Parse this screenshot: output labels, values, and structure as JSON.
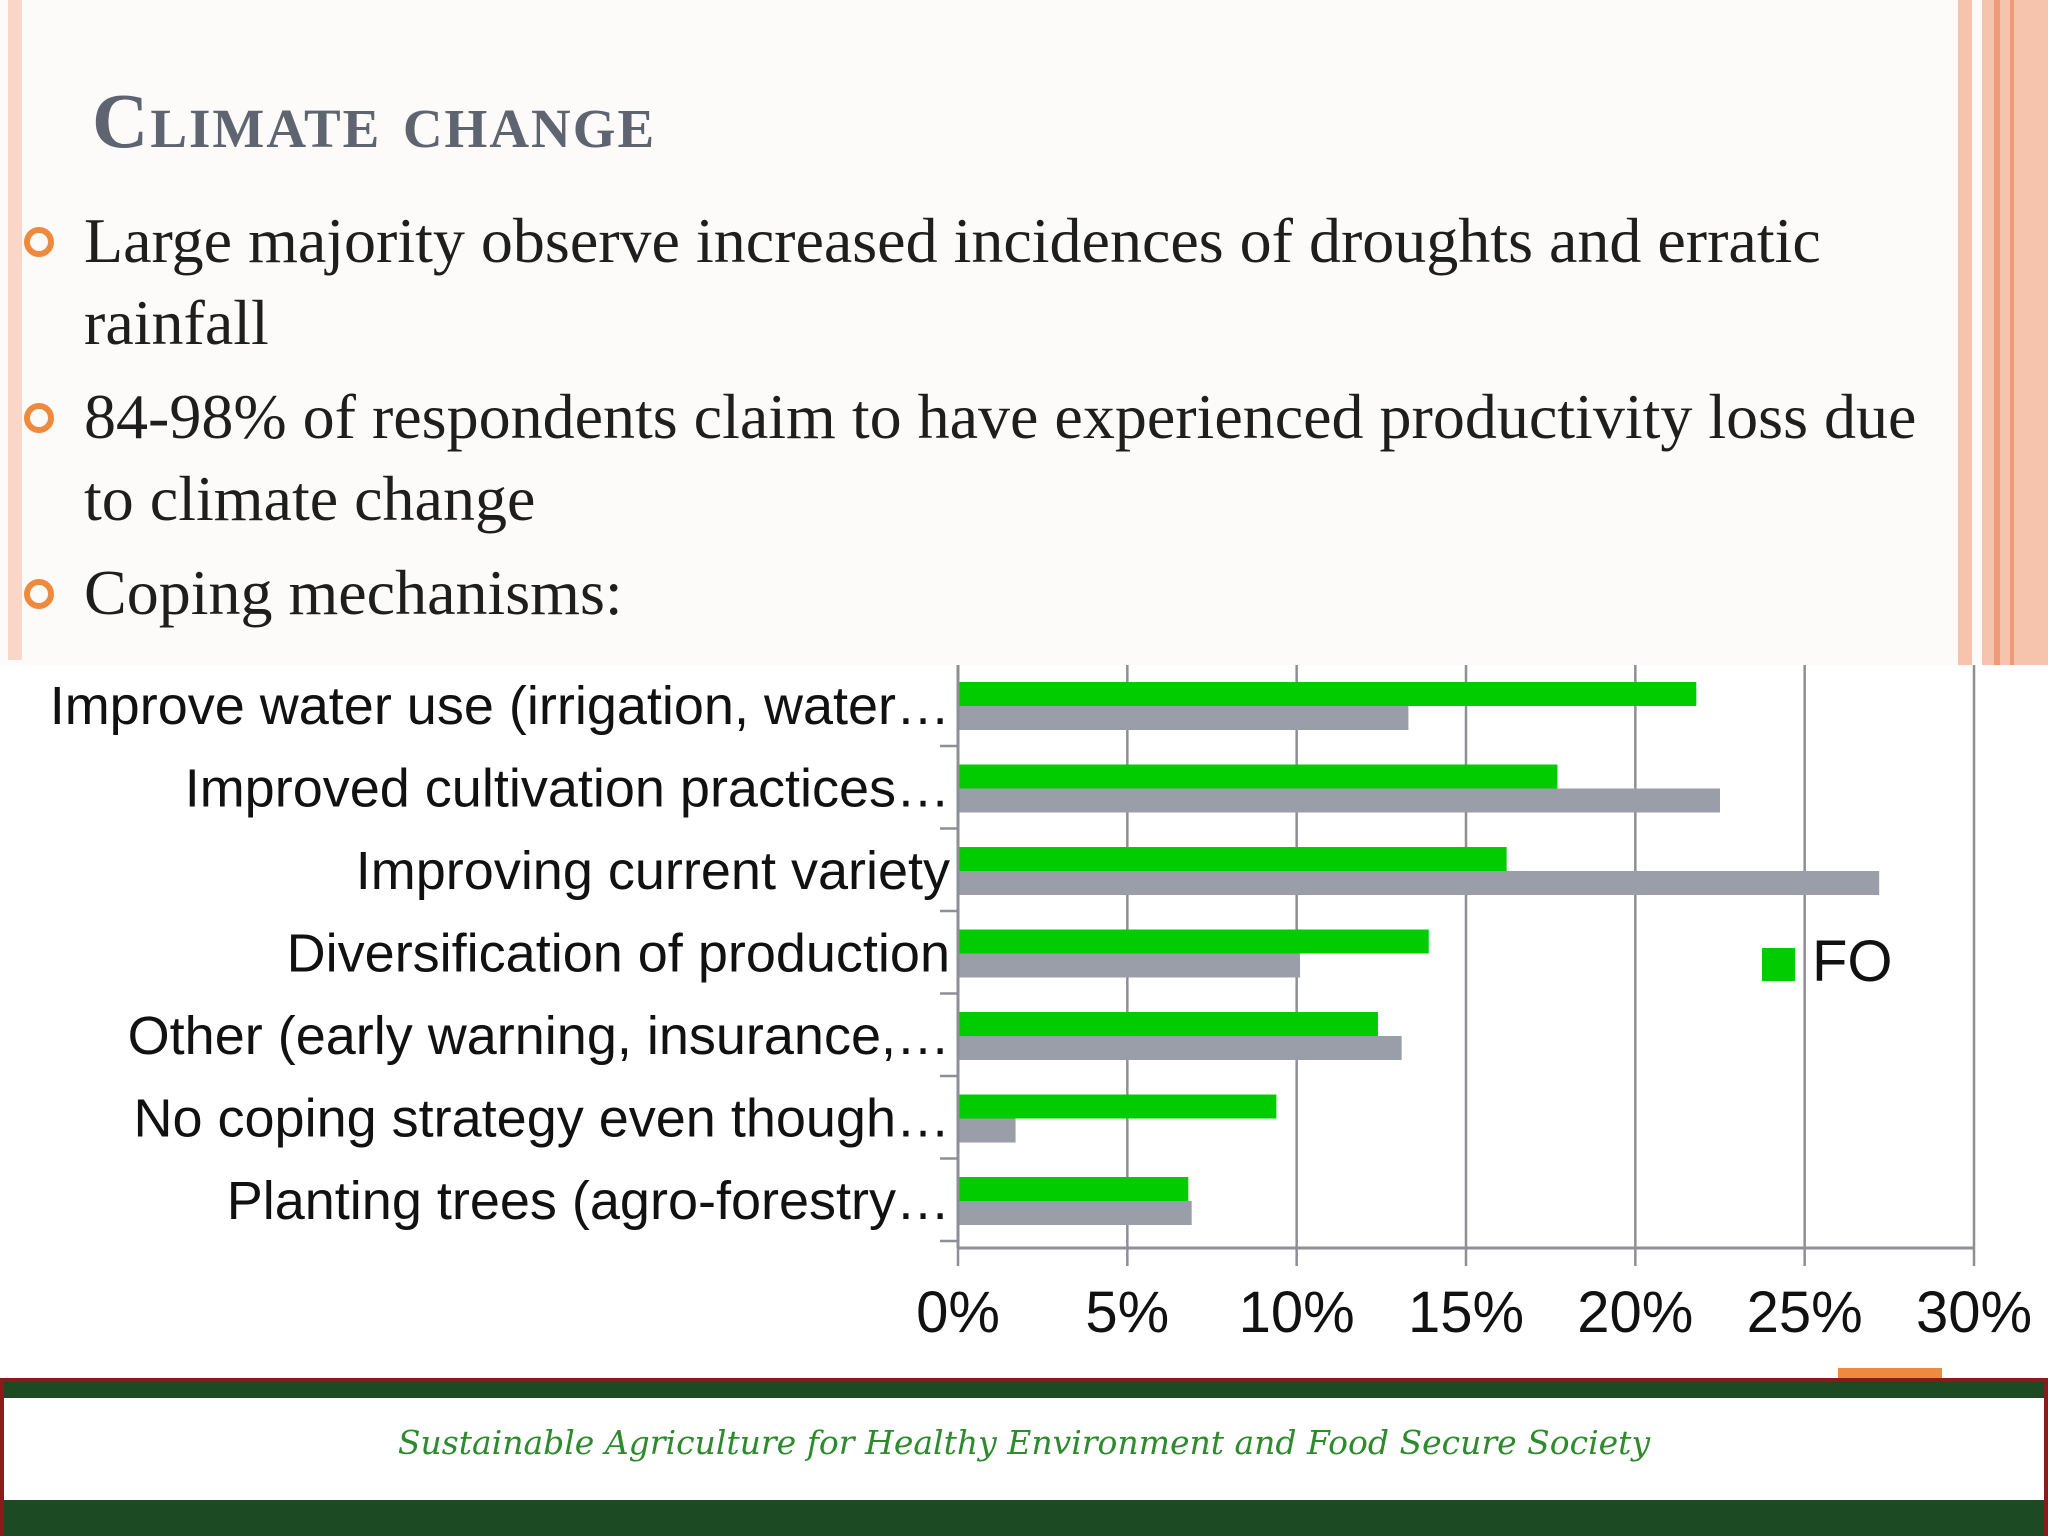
{
  "slide": {
    "title": "Climate change",
    "bullets": [
      "Large majority observe increased incidences of droughts and erratic rainfall",
      "84-98% of respondents claim to have experienced productivity loss due to climate change",
      "Coping mechanisms:"
    ],
    "footer_tagline": "Sustainable Agriculture for Healthy Environment and Food Secure Society"
  },
  "colors": {
    "fo_series": "#00cc00",
    "second_series": "#9a9ea8",
    "accent_orange": "#ee8a3d",
    "footer_green": "#1c4a22"
  },
  "chart_data": {
    "type": "bar",
    "orientation": "horizontal",
    "categories": [
      "Improve water use (irrigation, water…",
      "Improved cultivation practices…",
      "Improving current variety",
      "Diversification of production",
      "Other (early warning, insurance,…",
      "No coping strategy even though…",
      "Planting trees (agro-forestry…"
    ],
    "series": [
      {
        "name": "FO",
        "values": [
          21.8,
          17.7,
          16.2,
          13.9,
          12.4,
          9.4,
          6.8
        ]
      },
      {
        "values": [
          13.3,
          22.5,
          27.2,
          10.1,
          13.1,
          1.7,
          6.9
        ]
      }
    ],
    "xlim": [
      0,
      30
    ],
    "xticks": [
      0,
      5,
      10,
      15,
      20,
      25,
      30
    ],
    "xtick_labels": [
      "0%",
      "5%",
      "10%",
      "15%",
      "20%",
      "25%",
      "30%"
    ],
    "grid": true,
    "legend": {
      "position": "right",
      "entries": [
        "FO"
      ]
    }
  }
}
